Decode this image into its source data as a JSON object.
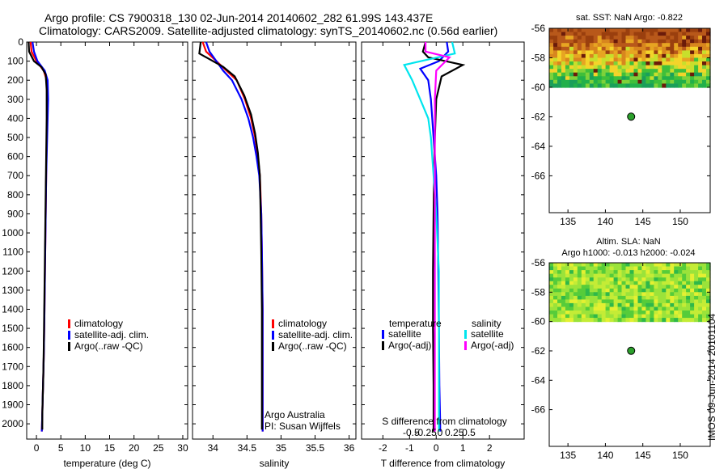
{
  "title": {
    "line1": "Argo profile: CS 7900318_130 02-Jun-2014 20140602_282 61.99S 143.437E",
    "line2": "Climatology: CARS2009. Satellite-adjusted climatology: synTS_20140602.nc (0.56d earlier)"
  },
  "colors": {
    "climatology": "#ff0000",
    "satellite": "#0000ff",
    "argo": "#000000",
    "sal_satellite": "#00e5ee",
    "sal_argo": "#ff00ff",
    "float_marker": "#2ca02c"
  },
  "chart_data": [
    {
      "type": "line",
      "name": "temperature",
      "xlabel": "temperature (deg C)",
      "ylabel": "",
      "xlim": [
        -2,
        31
      ],
      "ylim": [
        2080,
        0
      ],
      "y_reversed": true,
      "xticks": [
        "0",
        "5",
        "10",
        "15",
        "20",
        "25",
        "30"
      ],
      "yticks": [
        "0",
        "100",
        "200",
        "300",
        "400",
        "500",
        "600",
        "700",
        "800",
        "900",
        "1000",
        "1100",
        "1200",
        "1300",
        "1400",
        "1500",
        "1600",
        "1700",
        "1800",
        "1900",
        "2000"
      ],
      "legend": [
        "climatology",
        "satellite-adj. clim.",
        "Argo(..raw -QC)"
      ],
      "series": [
        {
          "name": "climatology",
          "color": "#ff0000",
          "x": [
            -1.2,
            -1.0,
            0.0,
            1.5,
            2.1,
            2.2,
            2.2,
            2.1,
            2.0,
            1.9,
            1.8,
            1.7,
            1.6,
            1.5,
            1.4,
            1.3,
            1.2,
            1.1
          ],
          "y": [
            0,
            50,
            100,
            150,
            200,
            300,
            400,
            500,
            700,
            900,
            1100,
            1300,
            1500,
            1650,
            1750,
            1850,
            1950,
            2040
          ]
        },
        {
          "name": "satellite-adj. clim.",
          "color": "#0000ff",
          "x": [
            -0.8,
            -0.5,
            0.2,
            1.7,
            2.3,
            2.4,
            2.3,
            2.2,
            2.0,
            1.9,
            1.8,
            1.7,
            1.6,
            1.5,
            1.4,
            1.3,
            1.2,
            1.1
          ],
          "y": [
            0,
            50,
            100,
            150,
            200,
            300,
            400,
            500,
            700,
            900,
            1100,
            1300,
            1500,
            1650,
            1750,
            1850,
            1950,
            2040
          ]
        },
        {
          "name": "Argo(..raw -QC)",
          "color": "#000000",
          "x": [
            -1.6,
            -1.5,
            -0.5,
            1.0,
            1.9,
            2.1,
            2.1,
            2.0,
            1.9,
            1.8,
            1.7,
            1.6,
            1.5,
            1.4,
            1.3,
            1.2,
            1.2
          ],
          "y": [
            0,
            50,
            100,
            130,
            170,
            250,
            400,
            600,
            800,
            1000,
            1200,
            1400,
            1600,
            1750,
            1850,
            1950,
            2030
          ]
        }
      ]
    },
    {
      "type": "line",
      "name": "salinity",
      "xlabel": "salinity",
      "ylabel": "",
      "xlim": [
        33.7,
        36.1
      ],
      "ylim": [
        2080,
        0
      ],
      "y_reversed": true,
      "xticks": [
        "34",
        "34.5",
        "35",
        "35.5",
        "36"
      ],
      "legend": [
        "climatology",
        "satellite-adj. clim.",
        "Argo(..raw -QC)"
      ],
      "annotation": [
        "Argo Australia",
        "PI: Susan Wijffels"
      ],
      "series": [
        {
          "name": "climatology",
          "color": "#ff0000",
          "x": [
            33.85,
            33.9,
            34.05,
            34.2,
            34.35,
            34.47,
            34.56,
            34.62,
            34.66,
            34.69,
            34.71,
            34.72,
            34.73,
            34.73,
            34.73
          ],
          "y": [
            0,
            50,
            100,
            150,
            200,
            300,
            400,
            500,
            600,
            700,
            900,
            1100,
            1400,
            1700,
            2040
          ]
        },
        {
          "name": "satellite-adj. clim.",
          "color": "#0000ff",
          "x": [
            33.9,
            33.95,
            34.05,
            34.15,
            34.28,
            34.42,
            34.52,
            34.59,
            34.64,
            34.68,
            34.71,
            34.72,
            34.73,
            34.73,
            34.73
          ],
          "y": [
            0,
            50,
            100,
            150,
            200,
            300,
            400,
            500,
            600,
            700,
            900,
            1100,
            1400,
            1700,
            2040
          ]
        },
        {
          "name": "Argo(..raw -QC)",
          "color": "#000000",
          "x": [
            33.82,
            33.8,
            33.95,
            34.15,
            34.32,
            34.46,
            34.56,
            34.62,
            34.66,
            34.69,
            34.7,
            34.71,
            34.72,
            34.72,
            34.72
          ],
          "y": [
            0,
            60,
            90,
            130,
            180,
            280,
            380,
            480,
            580,
            700,
            900,
            1100,
            1400,
            1700,
            2030
          ]
        }
      ]
    },
    {
      "type": "line",
      "name": "difference from climatology",
      "xlabel": "T difference from climatology",
      "xlabel_top": "S difference from climatology",
      "xlim": [
        -2.8,
        3.3
      ],
      "ylim": [
        2080,
        0
      ],
      "y_reversed": true,
      "xticks": [
        "-2",
        "-1",
        "0",
        "1",
        "2"
      ],
      "xticks_top": [
        "-0.5",
        "-0.25",
        "0",
        "0.25",
        "0.5"
      ],
      "legend_headers": [
        "temperature",
        "salinity"
      ],
      "legend": [
        "satellite",
        "Argo(-adj)",
        "satellite",
        "Argo(-adj)"
      ],
      "series": [
        {
          "name": "temperature satellite",
          "color": "#0000ff",
          "x": [
            0.4,
            0.45,
            0.1,
            -0.6,
            -0.3,
            -0.2,
            -0.1,
            0.0,
            0.05,
            0.08,
            0.1,
            0.12,
            0.15,
            0.15
          ],
          "y": [
            0,
            50,
            100,
            140,
            200,
            300,
            500,
            700,
            900,
            1200,
            1500,
            1800,
            2000,
            2040
          ]
        },
        {
          "name": "temperature Argo(-adj)",
          "color": "#000000",
          "x": [
            -0.4,
            -0.5,
            -0.3,
            1.0,
            0.2,
            0.0,
            -0.05,
            -0.08,
            -0.1,
            -0.12,
            -0.12,
            -0.1,
            -0.1,
            -0.1
          ],
          "y": [
            0,
            50,
            80,
            120,
            180,
            300,
            500,
            700,
            900,
            1200,
            1500,
            1800,
            2000,
            2040
          ]
        },
        {
          "name": "salinity satellite",
          "color": "#00e5ee",
          "x": [
            0.6,
            0.7,
            -1.2,
            -0.9,
            -0.6,
            -0.3,
            -0.2,
            -0.1,
            0.0,
            0.1,
            0.1,
            0.1
          ],
          "y": [
            0,
            60,
            120,
            200,
            300,
            400,
            500,
            700,
            900,
            1200,
            1600,
            2040
          ]
        },
        {
          "name": "salinity Argo(-adj)",
          "color": "#ff00ff",
          "x": [
            -0.4,
            -0.4,
            0.5,
            0.0,
            -0.05,
            -0.05,
            -0.05,
            -0.05,
            -0.05
          ],
          "y": [
            0,
            50,
            80,
            150,
            300,
            600,
            1000,
            1500,
            2040
          ]
        }
      ]
    },
    {
      "type": "heatmap",
      "name": "sat SST map",
      "title": "sat. SST: NaN Argo: -0.822",
      "xlim": [
        132.5,
        154
      ],
      "ylim": [
        -68.5,
        -56
      ],
      "xticks": [
        "135",
        "140",
        "145",
        "150"
      ],
      "yticks": [
        "-56",
        "-58",
        "-60",
        "-62",
        "-64",
        "-66"
      ],
      "data_extent_lat": [
        -60,
        -56
      ],
      "float_position": {
        "lon": 143.437,
        "lat": -61.99
      }
    },
    {
      "type": "heatmap",
      "name": "altimetry SLA map",
      "title": "Altim. SLA: NaN",
      "subtitle": "Argo h1000: -0.013 h2000: -0.024",
      "xlim": [
        132.5,
        154
      ],
      "ylim": [
        -68.5,
        -56
      ],
      "xticks": [
        "135",
        "140",
        "145",
        "150"
      ],
      "yticks": [
        "-56",
        "-58",
        "-60",
        "-62",
        "-64",
        "-66"
      ],
      "data_extent_lat": [
        -60,
        -56
      ],
      "float_position": {
        "lon": 143.437,
        "lat": -61.99
      }
    }
  ],
  "footer_vertical": "IMOS 09-Jun-2014 20101104"
}
